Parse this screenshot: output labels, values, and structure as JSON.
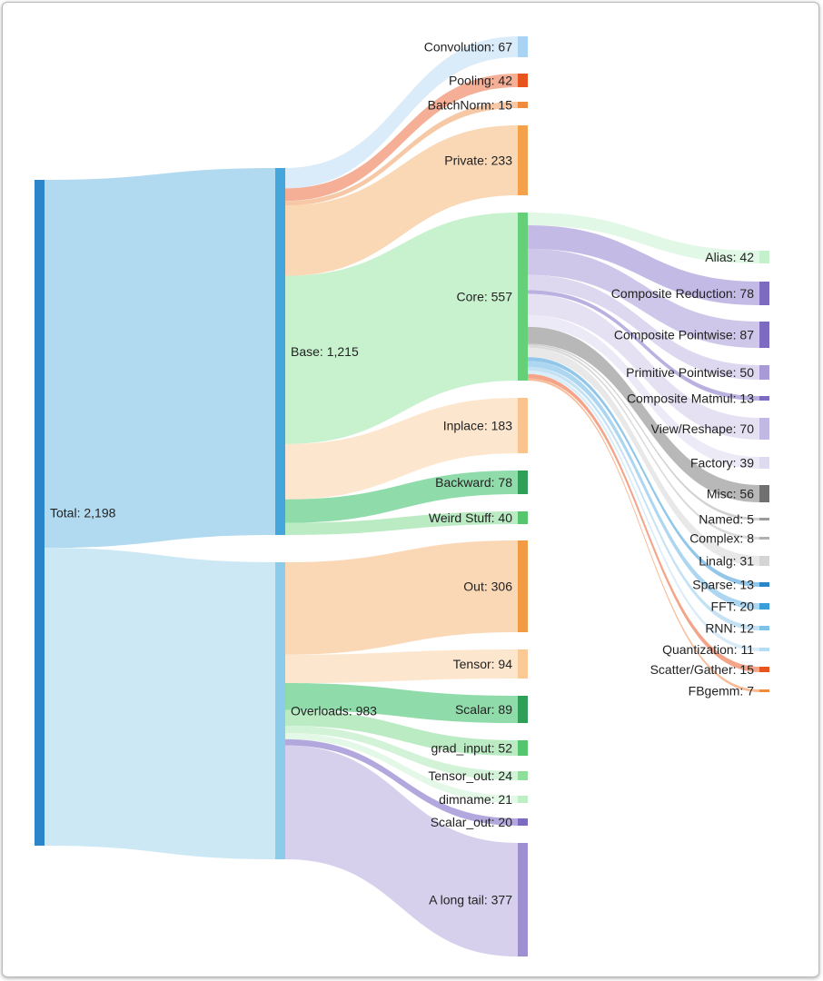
{
  "diagram": {
    "type": "sankey",
    "nodes": [
      {
        "id": "total",
        "label": "Total: 2,198",
        "color": "#2a86c9"
      },
      {
        "id": "base",
        "label": "Base: 1,215",
        "color": "#44a6db"
      },
      {
        "id": "overloads",
        "label": "Overloads: 983",
        "color": "#8ccbea"
      },
      {
        "id": "convolution",
        "label": "Convolution: 67",
        "color": "#a9d3f3"
      },
      {
        "id": "pooling",
        "label": "Pooling: 42",
        "color": "#e8541e"
      },
      {
        "id": "batchnorm",
        "label": "BatchNorm: 15",
        "color": "#f08a3d"
      },
      {
        "id": "private",
        "label": "Private: 233",
        "color": "#f5a04a"
      },
      {
        "id": "core",
        "label": "Core: 557",
        "color": "#65d07a"
      },
      {
        "id": "inplace",
        "label": "Inplace: 183",
        "color": "#fac48f"
      },
      {
        "id": "backward",
        "label": "Backward: 78",
        "color": "#2f9e56"
      },
      {
        "id": "weird",
        "label": "Weird Stuff: 40",
        "color": "#55c66d"
      },
      {
        "id": "out",
        "label": "Out: 306",
        "color": "#f39a45"
      },
      {
        "id": "tensor",
        "label": "Tensor: 94",
        "color": "#fac995"
      },
      {
        "id": "scalar",
        "label": "Scalar: 89",
        "color": "#2f9e56"
      },
      {
        "id": "grad_input",
        "label": "grad_input: 52",
        "color": "#55c66d"
      },
      {
        "id": "tensor_out",
        "label": "Tensor_out: 24",
        "color": "#8fdf9b"
      },
      {
        "id": "dimname",
        "label": "dimname: 21",
        "color": "#bdeec4"
      },
      {
        "id": "scalar_out",
        "label": "Scalar_out: 20",
        "color": "#7d6bc2"
      },
      {
        "id": "long_tail",
        "label": "A long tail: 377",
        "color": "#9d8fd0"
      },
      {
        "id": "alias",
        "label": "Alias: 42",
        "color": "#c5f0cc"
      },
      {
        "id": "comp_red",
        "label": "Composite Reduction: 78",
        "color": "#7d6bc2"
      },
      {
        "id": "comp_pw",
        "label": "Composite Pointwise: 87",
        "color": "#7d6bc2"
      },
      {
        "id": "prim_pw",
        "label": "Primitive Pointwise: 50",
        "color": "#a79ad6"
      },
      {
        "id": "comp_mm",
        "label": "Composite Matmul: 13",
        "color": "#7d6bc2"
      },
      {
        "id": "view",
        "label": "View/Reshape: 70",
        "color": "#c1b9e3"
      },
      {
        "id": "factory",
        "label": "Factory: 39",
        "color": "#dedaf0"
      },
      {
        "id": "misc",
        "label": "Misc: 56",
        "color": "#707070"
      },
      {
        "id": "named",
        "label": "Named: 5",
        "color": "#9a9a9a"
      },
      {
        "id": "complex",
        "label": "Complex: 8",
        "color": "#b0b0b0"
      },
      {
        "id": "linalg",
        "label": "Linalg: 31",
        "color": "#d4d4d4"
      },
      {
        "id": "sparse",
        "label": "Sparse: 13",
        "color": "#2a86c9"
      },
      {
        "id": "fft",
        "label": "FFT: 20",
        "color": "#3a9edb"
      },
      {
        "id": "rnn",
        "label": "RNN: 12",
        "color": "#7ec2e8"
      },
      {
        "id": "quant",
        "label": "Quantization: 11",
        "color": "#b3dbf3"
      },
      {
        "id": "scatter",
        "label": "Scatter/Gather: 15",
        "color": "#e8541e"
      },
      {
        "id": "fbgemm",
        "label": "FBgemm: 7",
        "color": "#f08a3d"
      }
    ],
    "links": [
      {
        "source": "total",
        "target": "base",
        "value": 1215,
        "color": "#a8d6ee"
      },
      {
        "source": "total",
        "target": "overloads",
        "value": 983,
        "color": "#c6e5f4"
      },
      {
        "source": "base",
        "target": "convolution",
        "value": 67,
        "color": "#d6e9f8"
      },
      {
        "source": "base",
        "target": "pooling",
        "value": 42,
        "color": "#f3a68b"
      },
      {
        "source": "base",
        "target": "batchnorm",
        "value": 15,
        "color": "#f6c29b"
      },
      {
        "source": "base",
        "target": "private",
        "value": 233,
        "color": "#f9d3ad"
      },
      {
        "source": "base",
        "target": "core",
        "value": 557,
        "color": "#c2efc9"
      },
      {
        "source": "base",
        "target": "inplace",
        "value": 183,
        "color": "#fde3c9"
      },
      {
        "source": "base",
        "target": "backward",
        "value": 78,
        "color": "#84d7a1"
      },
      {
        "source": "base",
        "target": "weird",
        "value": 40,
        "color": "#b2e9bd"
      },
      {
        "source": "overloads",
        "target": "out",
        "value": 306,
        "color": "#f9d4ae"
      },
      {
        "source": "overloads",
        "target": "tensor",
        "value": 94,
        "color": "#fde3c9"
      },
      {
        "source": "overloads",
        "target": "scalar",
        "value": 89,
        "color": "#84d7a1"
      },
      {
        "source": "overloads",
        "target": "grad_input",
        "value": 52,
        "color": "#b2e9bd"
      },
      {
        "source": "overloads",
        "target": "tensor_out",
        "value": 24,
        "color": "#cdf2d3"
      },
      {
        "source": "overloads",
        "target": "dimname",
        "value": 21,
        "color": "#e0f7e4"
      },
      {
        "source": "overloads",
        "target": "scalar_out",
        "value": 20,
        "color": "#ab9fd9"
      },
      {
        "source": "overloads",
        "target": "long_tail",
        "value": 377,
        "color": "#d1cbeb"
      },
      {
        "source": "core",
        "target": "alias",
        "value": 42,
        "color": "#dff7e3"
      },
      {
        "source": "core",
        "target": "comp_red",
        "value": 78,
        "color": "#bdb3e2"
      },
      {
        "source": "core",
        "target": "comp_pw",
        "value": 87,
        "color": "#c9c1e7"
      },
      {
        "source": "core",
        "target": "prim_pw",
        "value": 50,
        "color": "#d9d3ee"
      },
      {
        "source": "core",
        "target": "comp_mm",
        "value": 13,
        "color": "#b3a8de"
      },
      {
        "source": "core",
        "target": "view",
        "value": 70,
        "color": "#e2def2"
      },
      {
        "source": "core",
        "target": "factory",
        "value": 39,
        "color": "#ebe8f6"
      },
      {
        "source": "core",
        "target": "misc",
        "value": 56,
        "color": "#b0b0b0"
      },
      {
        "source": "core",
        "target": "named",
        "value": 5,
        "color": "#cccccc"
      },
      {
        "source": "core",
        "target": "complex",
        "value": 8,
        "color": "#d6d6d6"
      },
      {
        "source": "core",
        "target": "linalg",
        "value": 31,
        "color": "#e6e6e6"
      },
      {
        "source": "core",
        "target": "sparse",
        "value": 13,
        "color": "#86c1e8"
      },
      {
        "source": "core",
        "target": "fft",
        "value": 20,
        "color": "#a4d2ef"
      },
      {
        "source": "core",
        "target": "rnn",
        "value": 12,
        "color": "#bfdff3"
      },
      {
        "source": "core",
        "target": "quant",
        "value": 11,
        "color": "#d5eaf8"
      },
      {
        "source": "core",
        "target": "scatter",
        "value": 15,
        "color": "#f29a7c"
      },
      {
        "source": "core",
        "target": "fbgemm",
        "value": 7,
        "color": "#f6b58c"
      }
    ]
  }
}
